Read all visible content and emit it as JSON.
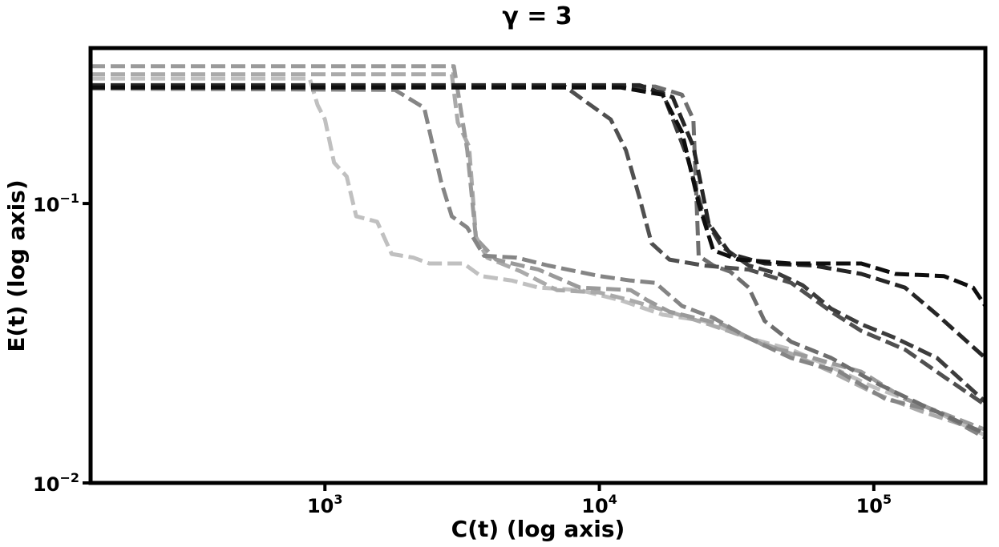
{
  "chart_data": {
    "type": "line",
    "title": "γ = 3",
    "xlabel": "C(t) (log axis)",
    "ylabel": "E(t) (log axis)",
    "xscale": "log",
    "yscale": "log",
    "xlim": [
      140,
      255000
    ],
    "ylim": [
      0.01,
      0.36
    ],
    "grid": false,
    "legend": "none",
    "line_style": "dashed",
    "x_ticks": [
      {
        "value": 1000,
        "base": "10",
        "exp": "3"
      },
      {
        "value": 10000,
        "base": "10",
        "exp": "4"
      },
      {
        "value": 100000,
        "base": "10",
        "exp": "5"
      }
    ],
    "y_ticks": [
      {
        "value": 0.1,
        "base": "10",
        "exp": "−1"
      },
      {
        "value": 0.01,
        "base": "10",
        "exp": "−2"
      }
    ],
    "series": [
      {
        "color": "#c0c0c0",
        "points": [
          [
            140,
            0.28
          ],
          [
            880,
            0.28
          ],
          [
            940,
            0.225
          ],
          [
            1000,
            0.2
          ],
          [
            1080,
            0.14
          ],
          [
            1200,
            0.125
          ],
          [
            1300,
            0.09
          ],
          [
            1550,
            0.086
          ],
          [
            1750,
            0.066
          ],
          [
            2100,
            0.064
          ],
          [
            2400,
            0.061
          ],
          [
            3200,
            0.061
          ],
          [
            3700,
            0.055
          ],
          [
            4800,
            0.053
          ],
          [
            6000,
            0.05
          ],
          [
            8500,
            0.049
          ],
          [
            12000,
            0.045
          ],
          [
            17000,
            0.04
          ],
          [
            24000,
            0.038
          ],
          [
            35000,
            0.033
          ],
          [
            50000,
            0.03
          ],
          [
            70000,
            0.026
          ],
          [
            100000,
            0.022
          ],
          [
            150000,
            0.019
          ],
          [
            255000,
            0.0148
          ]
        ]
      },
      {
        "color": "#aaaaaa",
        "points": [
          [
            140,
            0.29
          ],
          [
            2900,
            0.29
          ],
          [
            3050,
            0.195
          ],
          [
            3350,
            0.16
          ],
          [
            3550,
            0.076
          ],
          [
            3900,
            0.064
          ],
          [
            5200,
            0.057
          ],
          [
            7000,
            0.049
          ],
          [
            10000,
            0.048
          ],
          [
            13000,
            0.045
          ],
          [
            18000,
            0.041
          ],
          [
            25000,
            0.037
          ],
          [
            35000,
            0.033
          ],
          [
            50000,
            0.029
          ],
          [
            70000,
            0.025
          ],
          [
            100000,
            0.021
          ],
          [
            150000,
            0.018
          ],
          [
            255000,
            0.0152
          ]
        ]
      },
      {
        "color": "#9a9a9a",
        "points": [
          [
            140,
            0.31
          ],
          [
            2950,
            0.31
          ],
          [
            3300,
            0.155
          ],
          [
            3550,
            0.075
          ],
          [
            4200,
            0.063
          ],
          [
            6000,
            0.058
          ],
          [
            8500,
            0.05
          ],
          [
            13000,
            0.049
          ],
          [
            15000,
            0.045
          ],
          [
            18000,
            0.041
          ],
          [
            28000,
            0.037
          ],
          [
            40000,
            0.031
          ],
          [
            60000,
            0.028
          ],
          [
            90000,
            0.025
          ],
          [
            130000,
            0.02
          ],
          [
            200000,
            0.017
          ],
          [
            255000,
            0.0155
          ]
        ]
      },
      {
        "color": "#858585",
        "points": [
          [
            140,
            0.258
          ],
          [
            1800,
            0.255
          ],
          [
            2300,
            0.22
          ],
          [
            2650,
            0.12
          ],
          [
            2900,
            0.09
          ],
          [
            3300,
            0.082
          ],
          [
            3800,
            0.065
          ],
          [
            5000,
            0.064
          ],
          [
            6500,
            0.06
          ],
          [
            10000,
            0.055
          ],
          [
            13000,
            0.053
          ],
          [
            16000,
            0.052
          ],
          [
            20000,
            0.043
          ],
          [
            26000,
            0.039
          ],
          [
            35000,
            0.033
          ],
          [
            50000,
            0.028
          ],
          [
            75000,
            0.025
          ],
          [
            110000,
            0.02
          ],
          [
            170000,
            0.018
          ],
          [
            255000,
            0.0145
          ]
        ]
      },
      {
        "color": "#6e6e6e",
        "points": [
          [
            140,
            0.262
          ],
          [
            16000,
            0.262
          ],
          [
            20000,
            0.245
          ],
          [
            22000,
            0.2
          ],
          [
            23000,
            0.065
          ],
          [
            26000,
            0.06
          ],
          [
            30000,
            0.057
          ],
          [
            35000,
            0.05
          ],
          [
            40000,
            0.038
          ],
          [
            50000,
            0.032
          ],
          [
            70000,
            0.028
          ],
          [
            100000,
            0.023
          ],
          [
            150000,
            0.019
          ],
          [
            255000,
            0.015
          ]
        ]
      },
      {
        "color": "#505050",
        "points": [
          [
            140,
            0.265
          ],
          [
            7500,
            0.262
          ],
          [
            9000,
            0.23
          ],
          [
            11000,
            0.2
          ],
          [
            12500,
            0.155
          ],
          [
            14000,
            0.105
          ],
          [
            15500,
            0.072
          ],
          [
            18000,
            0.063
          ],
          [
            24000,
            0.06
          ],
          [
            35000,
            0.058
          ],
          [
            50000,
            0.052
          ],
          [
            70000,
            0.041
          ],
          [
            90000,
            0.035
          ],
          [
            130000,
            0.03
          ],
          [
            180000,
            0.024
          ],
          [
            255000,
            0.019
          ]
        ]
      },
      {
        "color": "#3c3c3c",
        "points": [
          [
            140,
            0.26
          ],
          [
            12000,
            0.262
          ],
          [
            17000,
            0.25
          ],
          [
            21000,
            0.145
          ],
          [
            24000,
            0.09
          ],
          [
            28000,
            0.07
          ],
          [
            35000,
            0.06
          ],
          [
            45000,
            0.056
          ],
          [
            55000,
            0.051
          ],
          [
            70000,
            0.042
          ],
          [
            90000,
            0.037
          ],
          [
            120000,
            0.033
          ],
          [
            170000,
            0.028
          ],
          [
            255000,
            0.0195
          ]
        ]
      },
      {
        "color": "#262626",
        "points": [
          [
            140,
            0.265
          ],
          [
            14000,
            0.265
          ],
          [
            18500,
            0.24
          ],
          [
            22000,
            0.16
          ],
          [
            25000,
            0.085
          ],
          [
            30000,
            0.066
          ],
          [
            40000,
            0.061
          ],
          [
            60000,
            0.06
          ],
          [
            90000,
            0.056
          ],
          [
            130000,
            0.05
          ],
          [
            170000,
            0.04
          ],
          [
            255000,
            0.028
          ]
        ]
      },
      {
        "color": "#0e0e0e",
        "points": [
          [
            140,
            0.26
          ],
          [
            12000,
            0.26
          ],
          [
            17000,
            0.245
          ],
          [
            20000,
            0.18
          ],
          [
            23000,
            0.1
          ],
          [
            26000,
            0.068
          ],
          [
            32000,
            0.063
          ],
          [
            50000,
            0.061
          ],
          [
            90000,
            0.061
          ],
          [
            120000,
            0.056
          ],
          [
            180000,
            0.055
          ],
          [
            230000,
            0.05
          ],
          [
            255000,
            0.043
          ]
        ]
      }
    ]
  }
}
